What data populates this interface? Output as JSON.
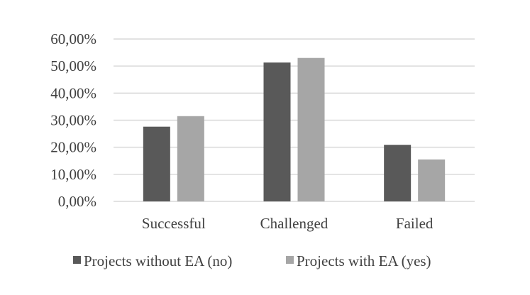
{
  "chart_data": {
    "type": "bar",
    "title": "",
    "xlabel": "",
    "ylabel": "",
    "categories": [
      "Successful",
      "Challenged",
      "Failed"
    ],
    "series": [
      {
        "name": "Projects without EA (no)",
        "values": [
          27.6,
          51.3,
          20.9
        ],
        "color": "#595959"
      },
      {
        "name": "Projects with EA (yes)",
        "values": [
          31.5,
          53.0,
          15.5
        ],
        "color": "#a6a6a6"
      }
    ],
    "ylim": [
      0,
      60
    ],
    "yticks": [
      {
        "value": 0,
        "label": "0,00%"
      },
      {
        "value": 10,
        "label": "10,00%"
      },
      {
        "value": 20,
        "label": "20,00%"
      },
      {
        "value": 30,
        "label": "30,00%"
      },
      {
        "value": 40,
        "label": "40,00%"
      },
      {
        "value": 50,
        "label": "50,00%"
      },
      {
        "value": 60,
        "label": "60,00%"
      }
    ],
    "grid": true,
    "legend_position": "bottom",
    "gridline_color": "#d9d9d9"
  }
}
